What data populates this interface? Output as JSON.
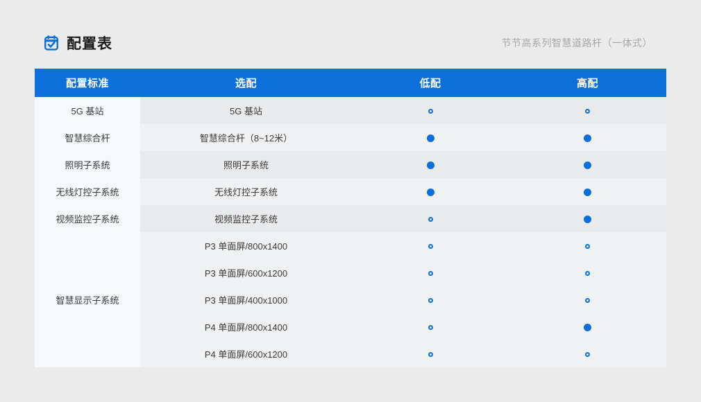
{
  "page": {
    "title": "配置表",
    "subtitle": "节节高系列智慧道路杆（一体式）"
  },
  "colors": {
    "accent_blue": "#0d6fd9",
    "header_bg": "#0d6fd9",
    "page_bg": "#ebebeb",
    "first_col_bg": "#f5f9fc",
    "row_dark": "#e9eaec",
    "row_light": "#f0f1f2",
    "subtitle_gray": "#a8a8a8"
  },
  "table": {
    "columns": [
      "配置标准",
      "选配",
      "低配",
      "高配"
    ],
    "rows": [
      {
        "standard": "5G 基站",
        "standard_rowspan": 1,
        "option": "5G 基站",
        "low": "hollow",
        "high": "hollow"
      },
      {
        "standard": "智慧综合杆",
        "standard_rowspan": 1,
        "option": "智慧综合杆（8~12米）",
        "low": "filled",
        "high": "filled"
      },
      {
        "standard": "照明子系统",
        "standard_rowspan": 1,
        "option": "照明子系统",
        "low": "filled",
        "high": "filled"
      },
      {
        "standard": "无线灯控子系统",
        "standard_rowspan": 1,
        "option": "无线灯控子系统",
        "low": "filled",
        "high": "filled"
      },
      {
        "standard": "视频监控子系统",
        "standard_rowspan": 1,
        "option": "视频监控子系统",
        "low": "hollow",
        "high": "filled"
      },
      {
        "standard": "智慧显示子系统",
        "standard_rowspan": 5,
        "option": "P3 单面屏/800x1400",
        "low": "hollow",
        "high": "hollow"
      },
      {
        "option": "P3 单面屏/600x1200",
        "low": "hollow",
        "high": "hollow"
      },
      {
        "option": "P3 单面屏/400x1000",
        "low": "hollow",
        "high": "hollow"
      },
      {
        "option": "P4 单面屏/800x1400",
        "low": "hollow",
        "high": "filled"
      },
      {
        "option": "P4 单面屏/600x1200",
        "low": "hollow",
        "high": "hollow"
      }
    ]
  }
}
